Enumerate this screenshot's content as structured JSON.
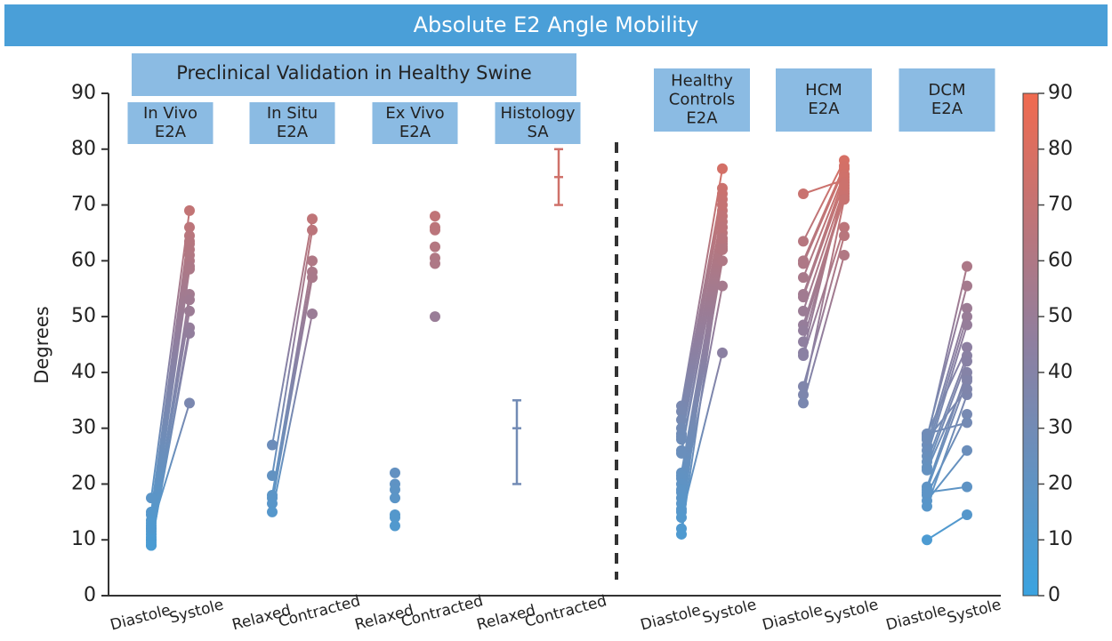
{
  "chart_data": {
    "type": "paired-dot",
    "title": "Absolute E2 Angle Mobility",
    "ylabel": "Degrees",
    "ylim": [
      0,
      90
    ],
    "yticks": [
      0,
      10,
      20,
      30,
      40,
      50,
      60,
      70,
      80,
      90
    ],
    "colorbar": {
      "lim": [
        0,
        90
      ],
      "ticks": [
        0,
        10,
        20,
        30,
        40,
        50,
        60,
        70,
        80,
        90
      ],
      "colormap": [
        "#3aa3e0",
        "#8e7fa0",
        "#f06a4f"
      ]
    },
    "banner": "Preclinical Validation in Healthy Swine",
    "groups": [
      {
        "header": [
          "In Vivo",
          "E2A"
        ],
        "categories": [
          "Diastole",
          "Systole"
        ],
        "pairs": [
          [
            17.5,
            69
          ],
          [
            15,
            66
          ],
          [
            14.5,
            64.5
          ],
          [
            13.5,
            63.5
          ],
          [
            13,
            63
          ],
          [
            12.5,
            62
          ],
          [
            12,
            61
          ],
          [
            11.5,
            60
          ],
          [
            11,
            59
          ],
          [
            10.5,
            58.5
          ],
          [
            10,
            54
          ],
          [
            10,
            53
          ],
          [
            9.5,
            51
          ],
          [
            9,
            48
          ],
          [
            9,
            47
          ],
          [
            12,
            34.5
          ]
        ]
      },
      {
        "header": [
          "In Situ",
          "E2A"
        ],
        "categories": [
          "Relaxed",
          "Contracted"
        ],
        "pairs": [
          [
            27,
            67.5
          ],
          [
            21.5,
            65.5
          ],
          [
            18,
            60
          ],
          [
            17.5,
            58
          ],
          [
            16.5,
            57
          ],
          [
            15,
            50.5
          ]
        ]
      },
      {
        "header": [
          "Ex Vivo",
          "E2A"
        ],
        "categories": [
          "Relaxed",
          "Contracted"
        ],
        "values": [
          [
            22,
            20,
            19,
            17.5,
            14.5,
            14,
            12.5
          ],
          [
            68,
            66,
            65.5,
            62.5,
            60.5,
            59.5,
            50
          ]
        ]
      },
      {
        "header": [
          "Histology",
          "SA"
        ],
        "categories": [
          "Relaxed",
          "Contracted"
        ],
        "mean": [
          30,
          75
        ],
        "low": [
          20,
          70
        ],
        "high": [
          35,
          80
        ]
      },
      {
        "header": [
          "Healthy",
          "Controls",
          "E2A"
        ],
        "categories": [
          "Diastole",
          "Systole"
        ],
        "pairs": [
          [
            34,
            76.5
          ],
          [
            33,
            73
          ],
          [
            31.5,
            72
          ],
          [
            30,
            71
          ],
          [
            29,
            69
          ],
          [
            28.5,
            68
          ],
          [
            28,
            67
          ],
          [
            26,
            66
          ],
          [
            25.5,
            65
          ],
          [
            22,
            64
          ],
          [
            21.5,
            63.5
          ],
          [
            21,
            63
          ],
          [
            20,
            62.5
          ],
          [
            19,
            62
          ],
          [
            18.5,
            62
          ],
          [
            17.5,
            60
          ],
          [
            16.5,
            55.5
          ],
          [
            15.5,
            66
          ],
          [
            15,
            64
          ],
          [
            12,
            70
          ],
          [
            11,
            62
          ],
          [
            14,
            43.5
          ]
        ]
      },
      {
        "header": [
          "HCM",
          "E2A"
        ],
        "categories": [
          "Diastole",
          "Systole"
        ],
        "pairs": [
          [
            72,
            74.5
          ],
          [
            63.5,
            78
          ],
          [
            60,
            77
          ],
          [
            59.5,
            76.5
          ],
          [
            57,
            75.5
          ],
          [
            54,
            75
          ],
          [
            53.5,
            74
          ],
          [
            51,
            73
          ],
          [
            48.5,
            72
          ],
          [
            47.5,
            71.5
          ],
          [
            45.5,
            72.5
          ],
          [
            43.5,
            73.5
          ],
          [
            43,
            66
          ],
          [
            37.5,
            64.5
          ],
          [
            36,
            71
          ],
          [
            34.5,
            61
          ]
        ]
      },
      {
        "header": [
          "DCM",
          "E2A"
        ],
        "categories": [
          "Diastole",
          "Systole"
        ],
        "pairs": [
          [
            29,
            44.5
          ],
          [
            28.5,
            55.5
          ],
          [
            28,
            59
          ],
          [
            27,
            51.5
          ],
          [
            26,
            50
          ],
          [
            25,
            48.5
          ],
          [
            24,
            43
          ],
          [
            23,
            42
          ],
          [
            22.5,
            39
          ],
          [
            19.5,
            40
          ],
          [
            19,
            38.5
          ],
          [
            18,
            32.5
          ],
          [
            17,
            26
          ],
          [
            29,
            31
          ],
          [
            16,
            36
          ],
          [
            18.5,
            19.5
          ],
          [
            10,
            14.5
          ],
          [
            28,
            37
          ]
        ]
      }
    ]
  }
}
